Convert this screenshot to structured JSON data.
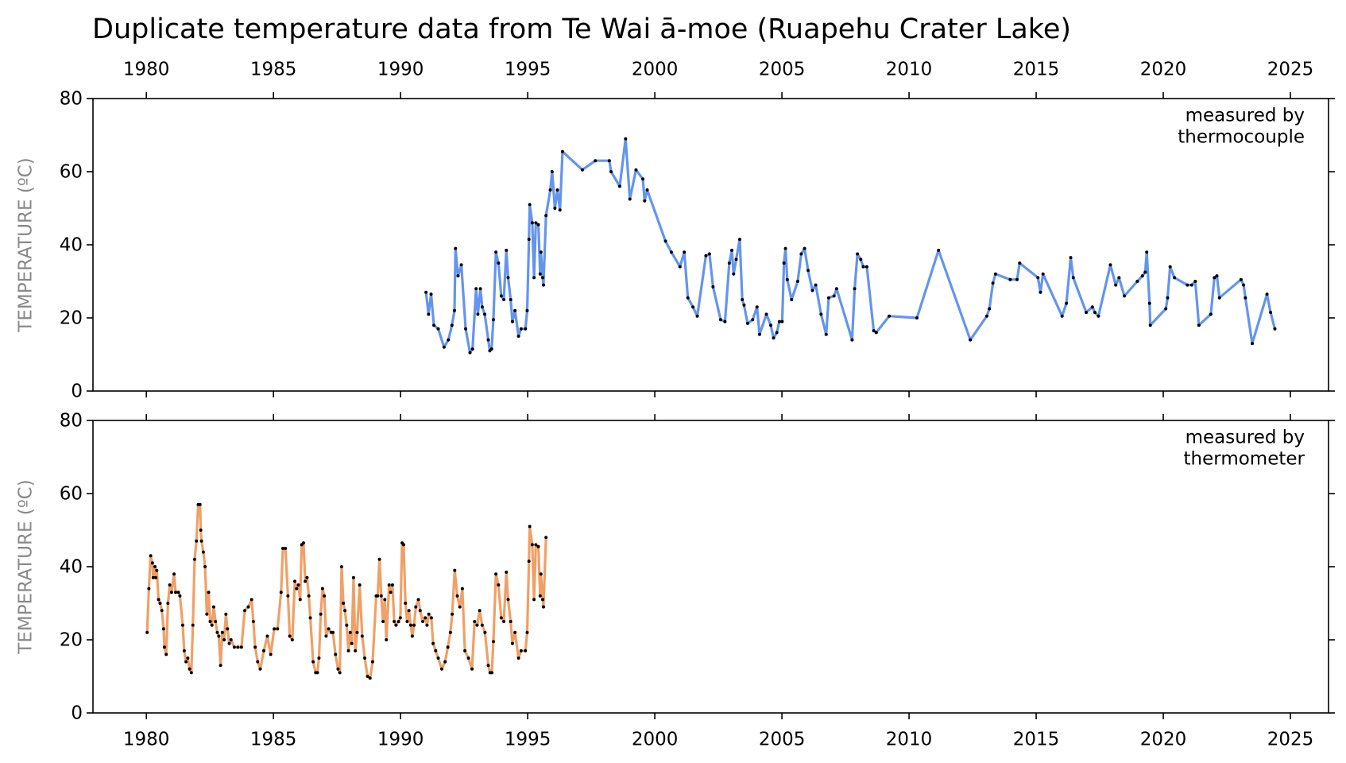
{
  "chart_data": [
    {
      "type": "line",
      "title": "Duplicate temperature data from Te Wai ā-moe (Ruapehu Crater Lake)",
      "annotation": [
        "measured by",
        "thermocouple"
      ],
      "ylabel": "TEMPERATURE (ºC)",
      "xlim": [
        1977.9,
        2026.5
      ],
      "xticks": [
        1980,
        1985,
        1990,
        1995,
        2000,
        2005,
        2010,
        2015,
        2020,
        2025
      ],
      "xtick_labels": "top",
      "ylim": [
        0,
        80
      ],
      "yticks": [
        0,
        20,
        40,
        60,
        80
      ],
      "marker_color": "#000000",
      "x": [
        1991.0,
        1991.1,
        1991.2,
        1991.31,
        1991.48,
        1991.71,
        1991.88,
        1992.02,
        1992.12,
        1992.16,
        1992.26,
        1992.39,
        1992.56,
        1992.73,
        1992.83,
        1992.97,
        1993.04,
        1993.14,
        1993.21,
        1993.31,
        1993.45,
        1993.51,
        1993.58,
        1993.65,
        1993.75,
        1993.85,
        1993.96,
        1994.06,
        1994.16,
        1994.23,
        1994.33,
        1994.4,
        1994.5,
        1994.64,
        1994.74,
        1994.91,
        1994.98,
        1995.05,
        1995.08,
        1995.18,
        1995.25,
        1995.32,
        1995.42,
        1995.49,
        1995.52,
        1995.59,
        1995.62,
        1995.72,
        1995.89,
        1995.96,
        1996.07,
        1996.17,
        1996.27,
        1996.37,
        1997.15,
        1997.66,
        1998.21,
        1998.28,
        1998.62,
        1998.85,
        1999.02,
        1999.26,
        1999.53,
        1999.6,
        1999.7,
        2000.42,
        2000.65,
        2000.99,
        2001.16,
        2001.3,
        2001.5,
        2001.67,
        2002.01,
        2002.15,
        2002.29,
        2002.59,
        2002.76,
        2002.93,
        2003.03,
        2003.1,
        2003.2,
        2003.34,
        2003.44,
        2003.51,
        2003.65,
        2003.85,
        2004.02,
        2004.12,
        2004.39,
        2004.56,
        2004.67,
        2004.8,
        2004.9,
        2005.01,
        2005.08,
        2005.14,
        2005.21,
        2005.38,
        2005.62,
        2005.76,
        2005.89,
        2006.03,
        2006.2,
        2006.33,
        2006.54,
        2006.74,
        2006.84,
        2007.05,
        2007.15,
        2007.76,
        2007.86,
        2007.97,
        2008.1,
        2008.2,
        2008.34,
        2008.61,
        2008.71,
        2009.22,
        2010.31,
        2011.16,
        2012.41,
        2013.06,
        2013.16,
        2013.3,
        2013.4,
        2013.98,
        2014.25,
        2014.35,
        2015.07,
        2015.17,
        2015.27,
        2016.02,
        2016.19,
        2016.36,
        2016.46,
        2016.97,
        2017.21,
        2017.31,
        2017.45,
        2017.92,
        2018.13,
        2018.26,
        2018.47,
        2018.98,
        2019.18,
        2019.29,
        2019.35,
        2019.46,
        2019.49,
        2020.1,
        2020.17,
        2020.27,
        2020.44,
        2020.95,
        2021.12,
        2021.26,
        2021.4,
        2021.87,
        2022.01,
        2022.11,
        2022.21,
        2023.06,
        2023.16,
        2023.23,
        2023.5,
        2024.08,
        2024.22,
        2024.39
      ],
      "series": [
        {
          "color": "#6495ed",
          "values": [
            27,
            21,
            26.5,
            18,
            17,
            12,
            14,
            18,
            22,
            39,
            31.5,
            34.5,
            17,
            10.5,
            11.5,
            28,
            21,
            28,
            23,
            21,
            14,
            11,
            11.5,
            19.5,
            38,
            35,
            26,
            25,
            38.5,
            31,
            25,
            19,
            22,
            15,
            17,
            17,
            22,
            41.5,
            51,
            46,
            31,
            46,
            45.5,
            32,
            38,
            31,
            29,
            48,
            55,
            60,
            50,
            55,
            49.5,
            65.5,
            60.5,
            63,
            63,
            60,
            56,
            69,
            52.5,
            60.5,
            58,
            52,
            55,
            41,
            38,
            34,
            38,
            25.5,
            23,
            20.5,
            37,
            37.5,
            28.5,
            19.5,
            19,
            35,
            38.5,
            32,
            36,
            41.5,
            25,
            23.5,
            18.5,
            19.5,
            23,
            15.5,
            21,
            18,
            14.5,
            16,
            19,
            19,
            35,
            39,
            30.5,
            25,
            30,
            37.5,
            39,
            33,
            27.5,
            29,
            21,
            15.5,
            25.5,
            26,
            28,
            14,
            28,
            37.5,
            36,
            34,
            34,
            16.5,
            16,
            20.5,
            20,
            38.5,
            14,
            20.5,
            22.5,
            29.5,
            32,
            30.5,
            30.5,
            35,
            31,
            27,
            32,
            20.5,
            24,
            36.5,
            31,
            21.5,
            23,
            21.5,
            20.5,
            34.5,
            29,
            31,
            26,
            30,
            31.5,
            32.5,
            38,
            24,
            18,
            22.5,
            25.5,
            34,
            31,
            29,
            29,
            30,
            18,
            21,
            31,
            31.5,
            25.5,
            30.5,
            29,
            25.5,
            13,
            26.5,
            21.5,
            17
          ]
        }
      ]
    },
    {
      "type": "line",
      "annotation": [
        "measured by",
        "thermometer"
      ],
      "ylabel": "TEMPERATURE (ºC)",
      "xlim": [
        1977.9,
        2026.5
      ],
      "xticks": [
        1980,
        1985,
        1990,
        1995,
        2000,
        2005,
        2010,
        2015,
        2020,
        2025
      ],
      "xtick_labels": "bottom",
      "ylim": [
        0,
        80
      ],
      "yticks": [
        0,
        20,
        40,
        60,
        80
      ],
      "marker_color": "#000000",
      "x": [
        1980.03,
        1980.1,
        1980.17,
        1980.24,
        1980.27,
        1980.34,
        1980.37,
        1980.41,
        1980.48,
        1980.54,
        1980.61,
        1980.68,
        1980.71,
        1980.78,
        1980.85,
        1980.92,
        1980.99,
        1981.09,
        1981.15,
        1981.26,
        1981.32,
        1981.43,
        1981.49,
        1981.56,
        1981.63,
        1981.7,
        1981.77,
        1981.83,
        1981.9,
        1981.97,
        1982.04,
        1982.11,
        1982.14,
        1982.17,
        1982.24,
        1982.31,
        1982.38,
        1982.45,
        1982.51,
        1982.58,
        1982.65,
        1982.72,
        1982.79,
        1982.85,
        1982.92,
        1982.99,
        1983.06,
        1983.13,
        1983.19,
        1983.26,
        1983.33,
        1983.46,
        1983.6,
        1983.74,
        1983.87,
        1984.01,
        1984.14,
        1984.21,
        1984.28,
        1984.38,
        1984.48,
        1984.62,
        1984.76,
        1984.89,
        1985.03,
        1985.16,
        1985.3,
        1985.37,
        1985.47,
        1985.57,
        1985.64,
        1985.74,
        1985.84,
        1985.91,
        1985.98,
        1986.05,
        1986.11,
        1986.18,
        1986.25,
        1986.32,
        1986.39,
        1986.45,
        1986.56,
        1986.66,
        1986.73,
        1986.79,
        1986.86,
        1986.93,
        1987.0,
        1987.07,
        1987.17,
        1987.27,
        1987.34,
        1987.44,
        1987.54,
        1987.61,
        1987.68,
        1987.75,
        1987.81,
        1987.88,
        1987.95,
        1988.02,
        1988.08,
        1988.15,
        1988.22,
        1988.29,
        1988.39,
        1988.49,
        1988.59,
        1988.7,
        1988.8,
        1988.9,
        1989.04,
        1989.1,
        1989.17,
        1989.24,
        1989.31,
        1989.38,
        1989.44,
        1989.55,
        1989.61,
        1989.68,
        1989.75,
        1989.82,
        1989.92,
        1989.99,
        1990.06,
        1990.12,
        1990.19,
        1990.26,
        1990.33,
        1990.4,
        1990.46,
        1990.53,
        1990.6,
        1990.7,
        1990.77,
        1990.87,
        1990.97,
        1991.04,
        1991.11,
        1991.21,
        1991.28,
        1991.38,
        1991.48,
        1991.62,
        1991.75,
        1991.86,
        1991.96,
        1992.03,
        1992.13,
        1992.23,
        1992.33,
        1992.43,
        1992.53,
        1992.67,
        1992.81,
        1992.91,
        1993.01,
        1993.11,
        1993.21,
        1993.32,
        1993.45,
        1993.52,
        1993.59,
        1993.65,
        1993.75,
        1993.85,
        1993.96,
        1994.06,
        1994.16,
        1994.23,
        1994.33,
        1994.4,
        1994.5,
        1994.64,
        1994.74,
        1994.91,
        1994.98,
        1995.05,
        1995.08,
        1995.18,
        1995.25,
        1995.32,
        1995.42,
        1995.49,
        1995.52,
        1995.59,
        1995.62,
        1995.72
      ],
      "series": [
        {
          "color": "#f0a066",
          "values": [
            22,
            34,
            43,
            41,
            37,
            40,
            37,
            39,
            31,
            30,
            28,
            23,
            18,
            16,
            30,
            35,
            33,
            38,
            33,
            33,
            32,
            24,
            17,
            14,
            15,
            12,
            11,
            24,
            42,
            47,
            57,
            57,
            50,
            47,
            44,
            40,
            27,
            33,
            25,
            24,
            29,
            25,
            22,
            21,
            13,
            22,
            20,
            27,
            23,
            19,
            20,
            18,
            18,
            18,
            28,
            29,
            31,
            25,
            18,
            14,
            12,
            17,
            21,
            16,
            23,
            23,
            33,
            45,
            45,
            32,
            21,
            20,
            36,
            34,
            35,
            31,
            46,
            46.5,
            36,
            37,
            32,
            26,
            14,
            11,
            11,
            15,
            27,
            34,
            32,
            21,
            23,
            22,
            22,
            16,
            12,
            11,
            40,
            30,
            28,
            24,
            17,
            22,
            19,
            37,
            17,
            22,
            35,
            21,
            15,
            10,
            9.5,
            14,
            32,
            32,
            42,
            32,
            25,
            31,
            20,
            35,
            33,
            35,
            25,
            24,
            25,
            26,
            46.5,
            46,
            30,
            25,
            28,
            24,
            21,
            24,
            29,
            31,
            28,
            25,
            26,
            24,
            27,
            26,
            19,
            17,
            15,
            12,
            14,
            18,
            22,
            27,
            39,
            32,
            29,
            34,
            17,
            15,
            12,
            25,
            24,
            28,
            24,
            22,
            13,
            11,
            11,
            19.5,
            38,
            35,
            26,
            25,
            38.5,
            31,
            25,
            19,
            22,
            15,
            17,
            17,
            22,
            41.5,
            51,
            46,
            31,
            46,
            45.5,
            32,
            38,
            31,
            29,
            48
          ]
        }
      ]
    }
  ]
}
